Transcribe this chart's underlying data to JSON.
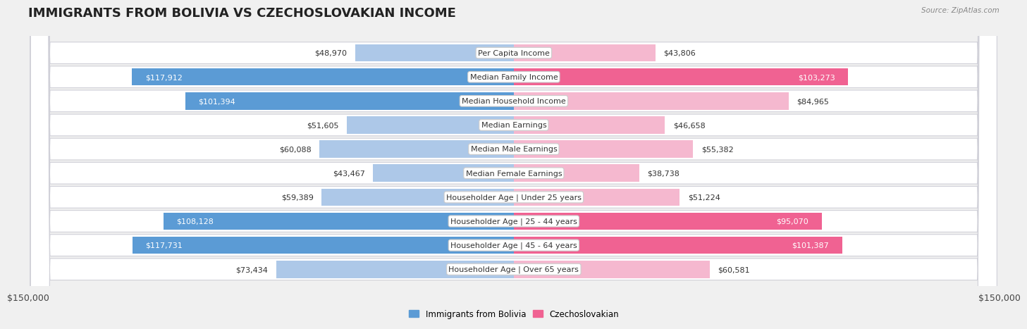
{
  "title": "IMMIGRANTS FROM BOLIVIA VS CZECHOSLOVAKIAN INCOME",
  "source": "Source: ZipAtlas.com",
  "categories": [
    "Per Capita Income",
    "Median Family Income",
    "Median Household Income",
    "Median Earnings",
    "Median Male Earnings",
    "Median Female Earnings",
    "Householder Age | Under 25 years",
    "Householder Age | 25 - 44 years",
    "Householder Age | 45 - 64 years",
    "Householder Age | Over 65 years"
  ],
  "bolivia_values": [
    48970,
    117912,
    101394,
    51605,
    60088,
    43467,
    59389,
    108128,
    117731,
    73434
  ],
  "czech_values": [
    43806,
    103273,
    84965,
    46658,
    55382,
    38738,
    51224,
    95070,
    101387,
    60581
  ],
  "bolivia_color_low": "#adc8e8",
  "bolivia_color_high": "#5b9bd5",
  "czech_color_low": "#f5b8cf",
  "czech_color_high": "#f06292",
  "bolivia_threshold": 90000,
  "czech_threshold": 90000,
  "xlim": 150000,
  "xlabel_left": "$150,000",
  "xlabel_right": "$150,000",
  "legend_bolivia": "Immigrants from Bolivia",
  "legend_czech": "Czechoslovakian",
  "page_background": "#f0f0f0",
  "row_background": "#ffffff",
  "row_border": "#d0d0d8",
  "label_fontsize": 8,
  "title_fontsize": 13,
  "value_fontsize": 8
}
